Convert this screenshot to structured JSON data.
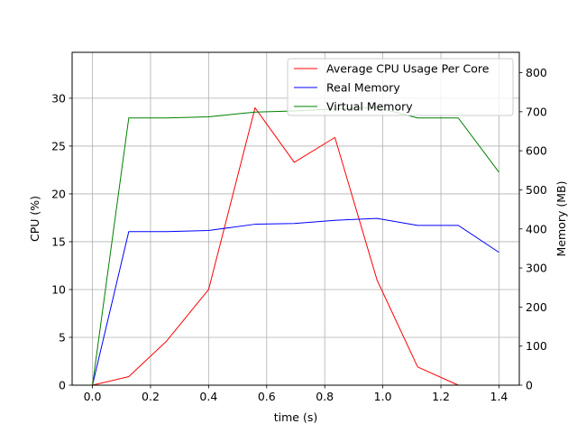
{
  "chart_data": {
    "type": "line",
    "title": "",
    "xlabel": "time (s)",
    "ylabel_left": "CPU (%)",
    "ylabel_right": "Memory (MB)",
    "xlim": [
      -0.07,
      1.47
    ],
    "ylim_left": [
      0,
      34.8
    ],
    "ylim_right": [
      0,
      852
    ],
    "x_ticks": [
      0.0,
      0.2,
      0.4,
      0.6,
      0.8,
      1.0,
      1.2,
      1.4
    ],
    "x_tick_labels": [
      "0.0",
      "0.2",
      "0.4",
      "0.6",
      "0.8",
      "1.0",
      "1.2",
      "1.4"
    ],
    "y_left_ticks": [
      0,
      5,
      10,
      15,
      20,
      25,
      30
    ],
    "y_left_tick_labels": [
      "0",
      "5",
      "10",
      "15",
      "20",
      "25",
      "30"
    ],
    "y_right_ticks": [
      0,
      100,
      200,
      300,
      400,
      500,
      600,
      700,
      800
    ],
    "y_right_tick_labels": [
      "0",
      "100",
      "200",
      "300",
      "400",
      "500",
      "600",
      "700",
      "800"
    ],
    "grid": true,
    "legend_position": "top-right",
    "series": [
      {
        "name": "Average CPU Usage Per Core",
        "axis": "left",
        "color": "#ff0000",
        "x": [
          0.0,
          0.125,
          0.255,
          0.4,
          0.56,
          0.695,
          0.835,
          0.98,
          1.12,
          1.26,
          1.4
        ],
        "y": [
          0,
          0.9,
          4.6,
          10.0,
          29.0,
          23.3,
          25.9,
          11.0,
          1.9,
          0,
          0
        ]
      },
      {
        "name": "Real Memory",
        "axis": "right",
        "color": "#0000ff",
        "x": [
          0.0,
          0.125,
          0.255,
          0.4,
          0.56,
          0.695,
          0.835,
          0.98,
          1.12,
          1.26,
          1.4
        ],
        "y": [
          0,
          393,
          393,
          396,
          412,
          414,
          422,
          427,
          409,
          409,
          340
        ]
      },
      {
        "name": "Virtual Memory",
        "axis": "right",
        "color": "#008000",
        "x": [
          0.0,
          0.125,
          0.255,
          0.4,
          0.56,
          0.695,
          0.835,
          0.98,
          1.12,
          1.26,
          1.4
        ],
        "y": [
          0,
          684,
          684,
          687,
          699,
          702,
          707,
          711,
          684,
          684,
          545
        ]
      }
    ]
  }
}
